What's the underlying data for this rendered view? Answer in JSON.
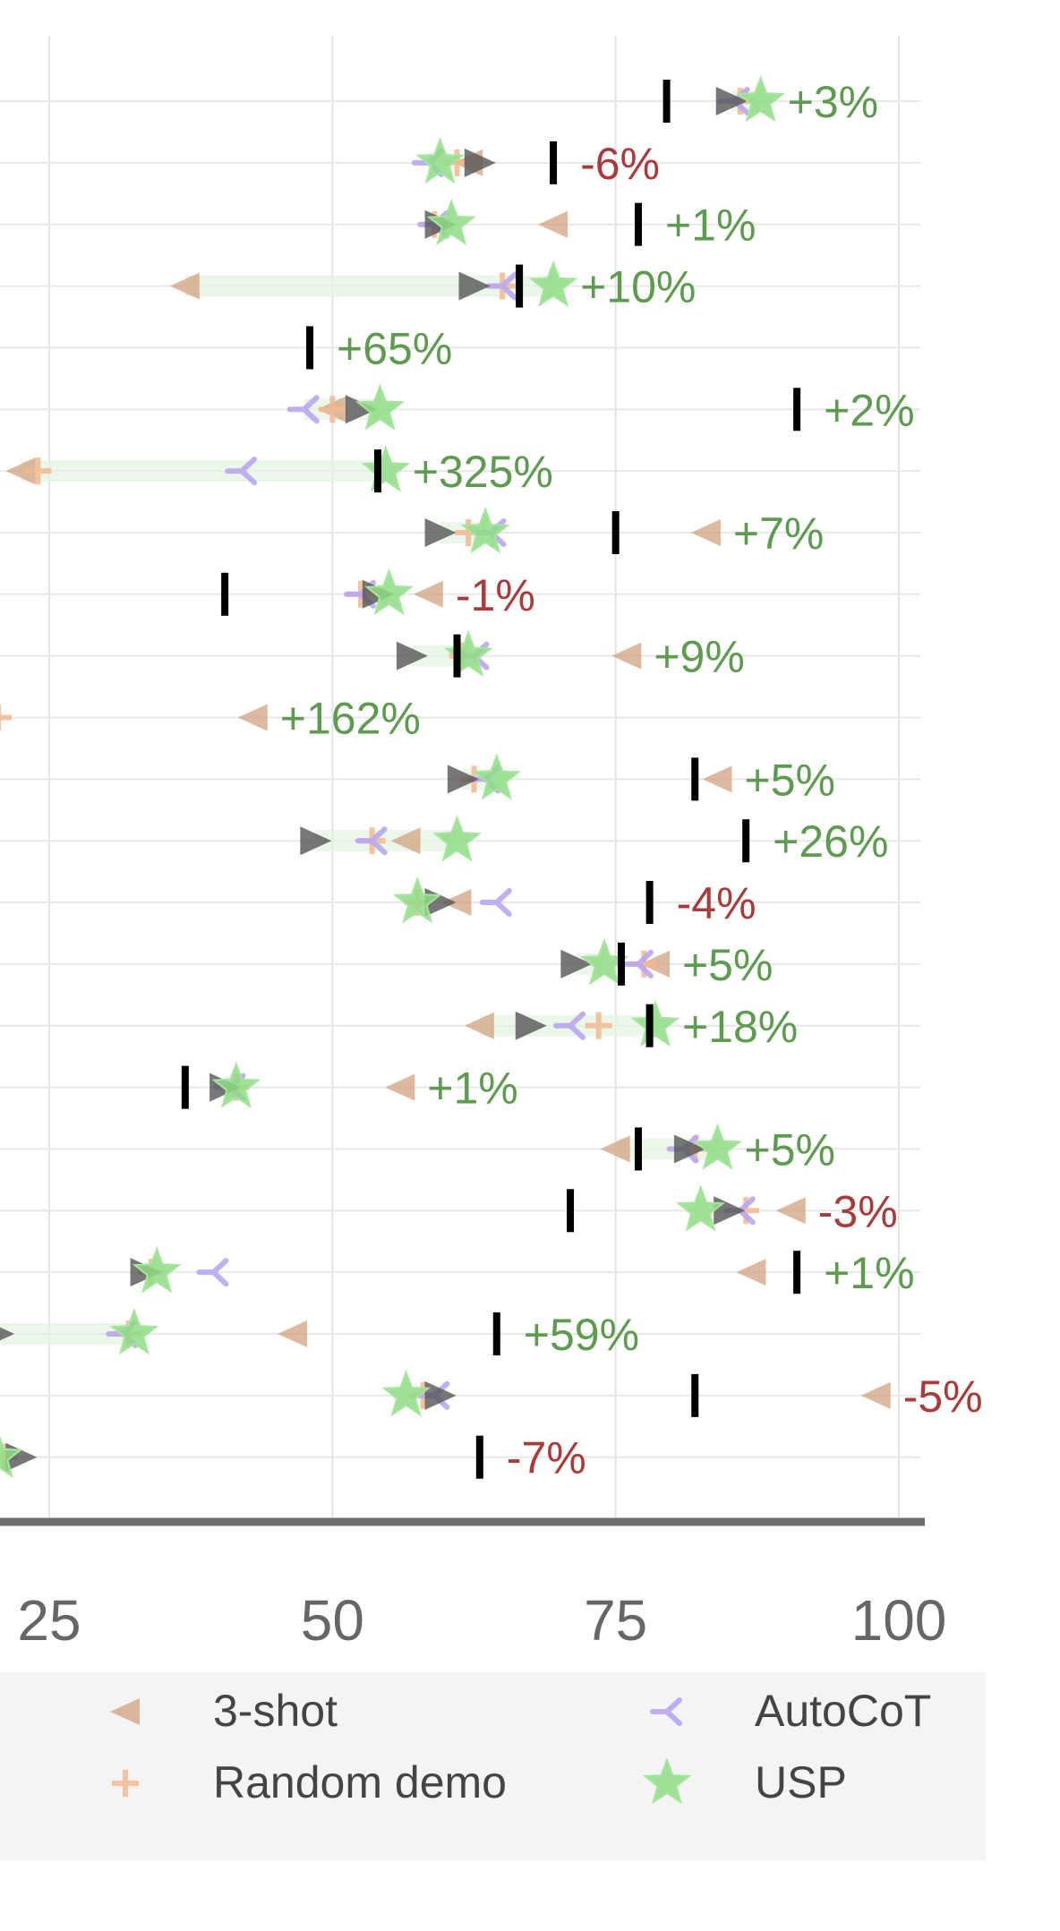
{
  "chart_data": {
    "type": "scatter",
    "orientation": "horizontal",
    "x_ticks": [
      "25",
      "50",
      "75",
      "100"
    ],
    "xlim": [
      20.5,
      102.5
    ],
    "grid": true,
    "legend_placement": "bottom",
    "colors": {
      "three_shot": "#d2a27f",
      "random_demo": "#f2b892",
      "autocot": "#b9a6ef",
      "usp": "#8fdc86",
      "zero_shot": "#555555",
      "reference": "#000000",
      "positive": "#5e9a4f",
      "negative": "#a83b3b",
      "improvement_band": "#e3f3df"
    },
    "legend": [
      {
        "key": "three_shot",
        "label": "3-shot"
      },
      {
        "key": "autocot",
        "label": "AutoCoT"
      },
      {
        "key": "random_demo",
        "label": "Random demo"
      },
      {
        "key": "usp",
        "label": "USP"
      }
    ],
    "rows": [
      {
        "label": "+3%",
        "three_shot": null,
        "random_demo": 86,
        "autocot": 85.5,
        "usp": 87.8,
        "zero_shot": 85.2,
        "reference": 79.5
      },
      {
        "label": "-6%",
        "three_shot": 62,
        "random_demo": 61,
        "autocot": 58.5,
        "usp": 59.5,
        "zero_shot": 63,
        "reference": 69.5
      },
      {
        "label": "+1%",
        "three_shot": 69.5,
        "random_demo": 59,
        "autocot": 59,
        "usp": 60.5,
        "zero_shot": 59.5,
        "reference": 77
      },
      {
        "label": "+10%",
        "three_shot": 37,
        "random_demo": 65,
        "autocot": 65,
        "usp": 69.5,
        "zero_shot": 62.5,
        "reference": 66.5
      },
      {
        "label": "+65%",
        "three_shot": null,
        "random_demo": null,
        "autocot": null,
        "usp": null,
        "zero_shot": null,
        "reference": 48
      },
      {
        "label": "+2%",
        "three_shot": 50,
        "random_demo": 50,
        "autocot": 47.5,
        "usp": 54.2,
        "zero_shot": 52.5,
        "reference": 91
      },
      {
        "label": "+325%",
        "three_shot": 22.5,
        "random_demo": 24,
        "autocot": 42,
        "usp": 54.7,
        "zero_shot": null,
        "reference": 54
      },
      {
        "label": "+7%",
        "three_shot": 83,
        "random_demo": 62,
        "autocot": 64,
        "usp": 63.5,
        "zero_shot": 59.5,
        "reference": 75
      },
      {
        "label": "-1%",
        "three_shot": 58.5,
        "random_demo": 52.5,
        "autocot": 52.5,
        "usp": 55,
        "zero_shot": 54,
        "reference": 40.5
      },
      {
        "label": "+9%",
        "three_shot": 76,
        "random_demo": 61.5,
        "autocot": 62.5,
        "usp": 62,
        "zero_shot": 57,
        "reference": 61
      },
      {
        "label": "+162%",
        "three_shot": 43,
        "random_demo": 20.5,
        "autocot": null,
        "usp": null,
        "zero_shot": null,
        "reference": null
      },
      {
        "label": "+5%",
        "three_shot": 84,
        "random_demo": 62.5,
        "autocot": 63.5,
        "usp": 64.5,
        "zero_shot": 61.5,
        "reference": 82
      },
      {
        "label": "+26%",
        "three_shot": 56.5,
        "random_demo": 53.5,
        "autocot": 53.5,
        "usp": 61,
        "zero_shot": 48.5,
        "reference": 86.5
      },
      {
        "label": "-4%",
        "three_shot": 61,
        "random_demo": 57.5,
        "autocot": 64.5,
        "usp": 57.5,
        "zero_shot": 59.5,
        "reference": 78
      },
      {
        "label": "+5%",
        "three_shot": 78.5,
        "random_demo": 77.5,
        "autocot": 77,
        "usp": 74,
        "zero_shot": 71.5,
        "reference": 75.5
      },
      {
        "label": "+18%",
        "three_shot": 63,
        "random_demo": 73.5,
        "autocot": 71,
        "usp": 78.5,
        "zero_shot": 67.5,
        "reference": 78
      },
      {
        "label": "+1%",
        "three_shot": 56,
        "random_demo": 41.5,
        "autocot": 41,
        "usp": 41.5,
        "zero_shot": 40.5,
        "reference": 37
      },
      {
        "label": "+5%",
        "three_shot": 75,
        "random_demo": 82,
        "autocot": 81,
        "usp": 84,
        "zero_shot": 81.5,
        "reference": 77
      },
      {
        "label": "-3%",
        "three_shot": 90.5,
        "random_demo": 86.5,
        "autocot": 86,
        "usp": 82.5,
        "zero_shot": 85,
        "reference": 71
      },
      {
        "label": "+1%",
        "three_shot": 87,
        "random_demo": 34,
        "autocot": 39.5,
        "usp": 34.5,
        "zero_shot": 33.5,
        "reference": 91
      },
      {
        "label": "+59%",
        "three_shot": 46.5,
        "random_demo": 32,
        "autocot": 31.5,
        "usp": 32.5,
        "zero_shot": 20.5,
        "reference": 64.5
      },
      {
        "label": "-5%",
        "three_shot": 98,
        "random_demo": 58,
        "autocot": 59,
        "usp": 56.5,
        "zero_shot": 59.5,
        "reference": 82
      },
      {
        "label": "-7%",
        "three_shot": null,
        "random_demo": 21,
        "autocot": null,
        "usp": 20.5,
        "zero_shot": 22.5,
        "reference": 63
      }
    ]
  }
}
